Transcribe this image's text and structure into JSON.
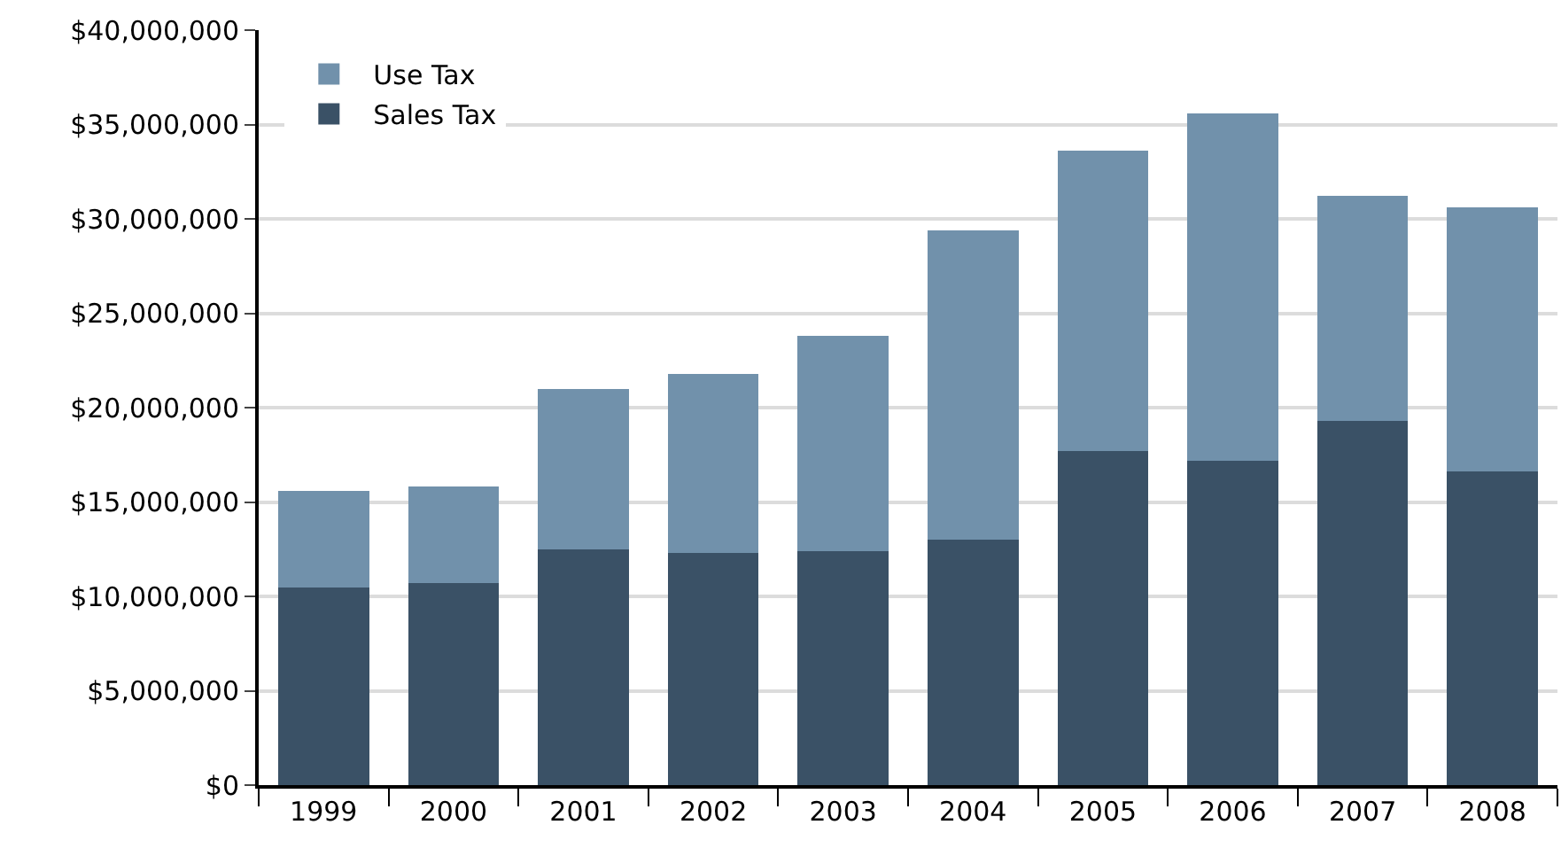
{
  "chart_data": {
    "type": "bar",
    "stacked": true,
    "categories": [
      "1999",
      "2000",
      "2001",
      "2002",
      "2003",
      "2004",
      "2005",
      "2006",
      "2007",
      "2008"
    ],
    "series": [
      {
        "name": "Sales Tax",
        "color": "#3a5166",
        "values": [
          10450000,
          10700000,
          12500000,
          12300000,
          12400000,
          13000000,
          17700000,
          17200000,
          19300000,
          16600000
        ]
      },
      {
        "name": "Use Tax",
        "color": "#7191ab",
        "values": [
          5150000,
          5100000,
          8500000,
          9500000,
          11400000,
          16400000,
          15900000,
          18400000,
          11900000,
          14000000
        ]
      }
    ],
    "ylim": [
      0,
      40000000
    ],
    "yticks": [
      {
        "value": 0,
        "label": "$0"
      },
      {
        "value": 5000000,
        "label": "$5,000,000"
      },
      {
        "value": 10000000,
        "label": "$10,000,000"
      },
      {
        "value": 15000000,
        "label": "$15,000,000"
      },
      {
        "value": 20000000,
        "label": "$20,000,000"
      },
      {
        "value": 25000000,
        "label": "$25,000,000"
      },
      {
        "value": 30000000,
        "label": "$30,000,000"
      },
      {
        "value": 35000000,
        "label": "$35,000,000"
      },
      {
        "value": 40000000,
        "label": "$40,000,000"
      }
    ],
    "grid": "y",
    "legend": "top left"
  }
}
